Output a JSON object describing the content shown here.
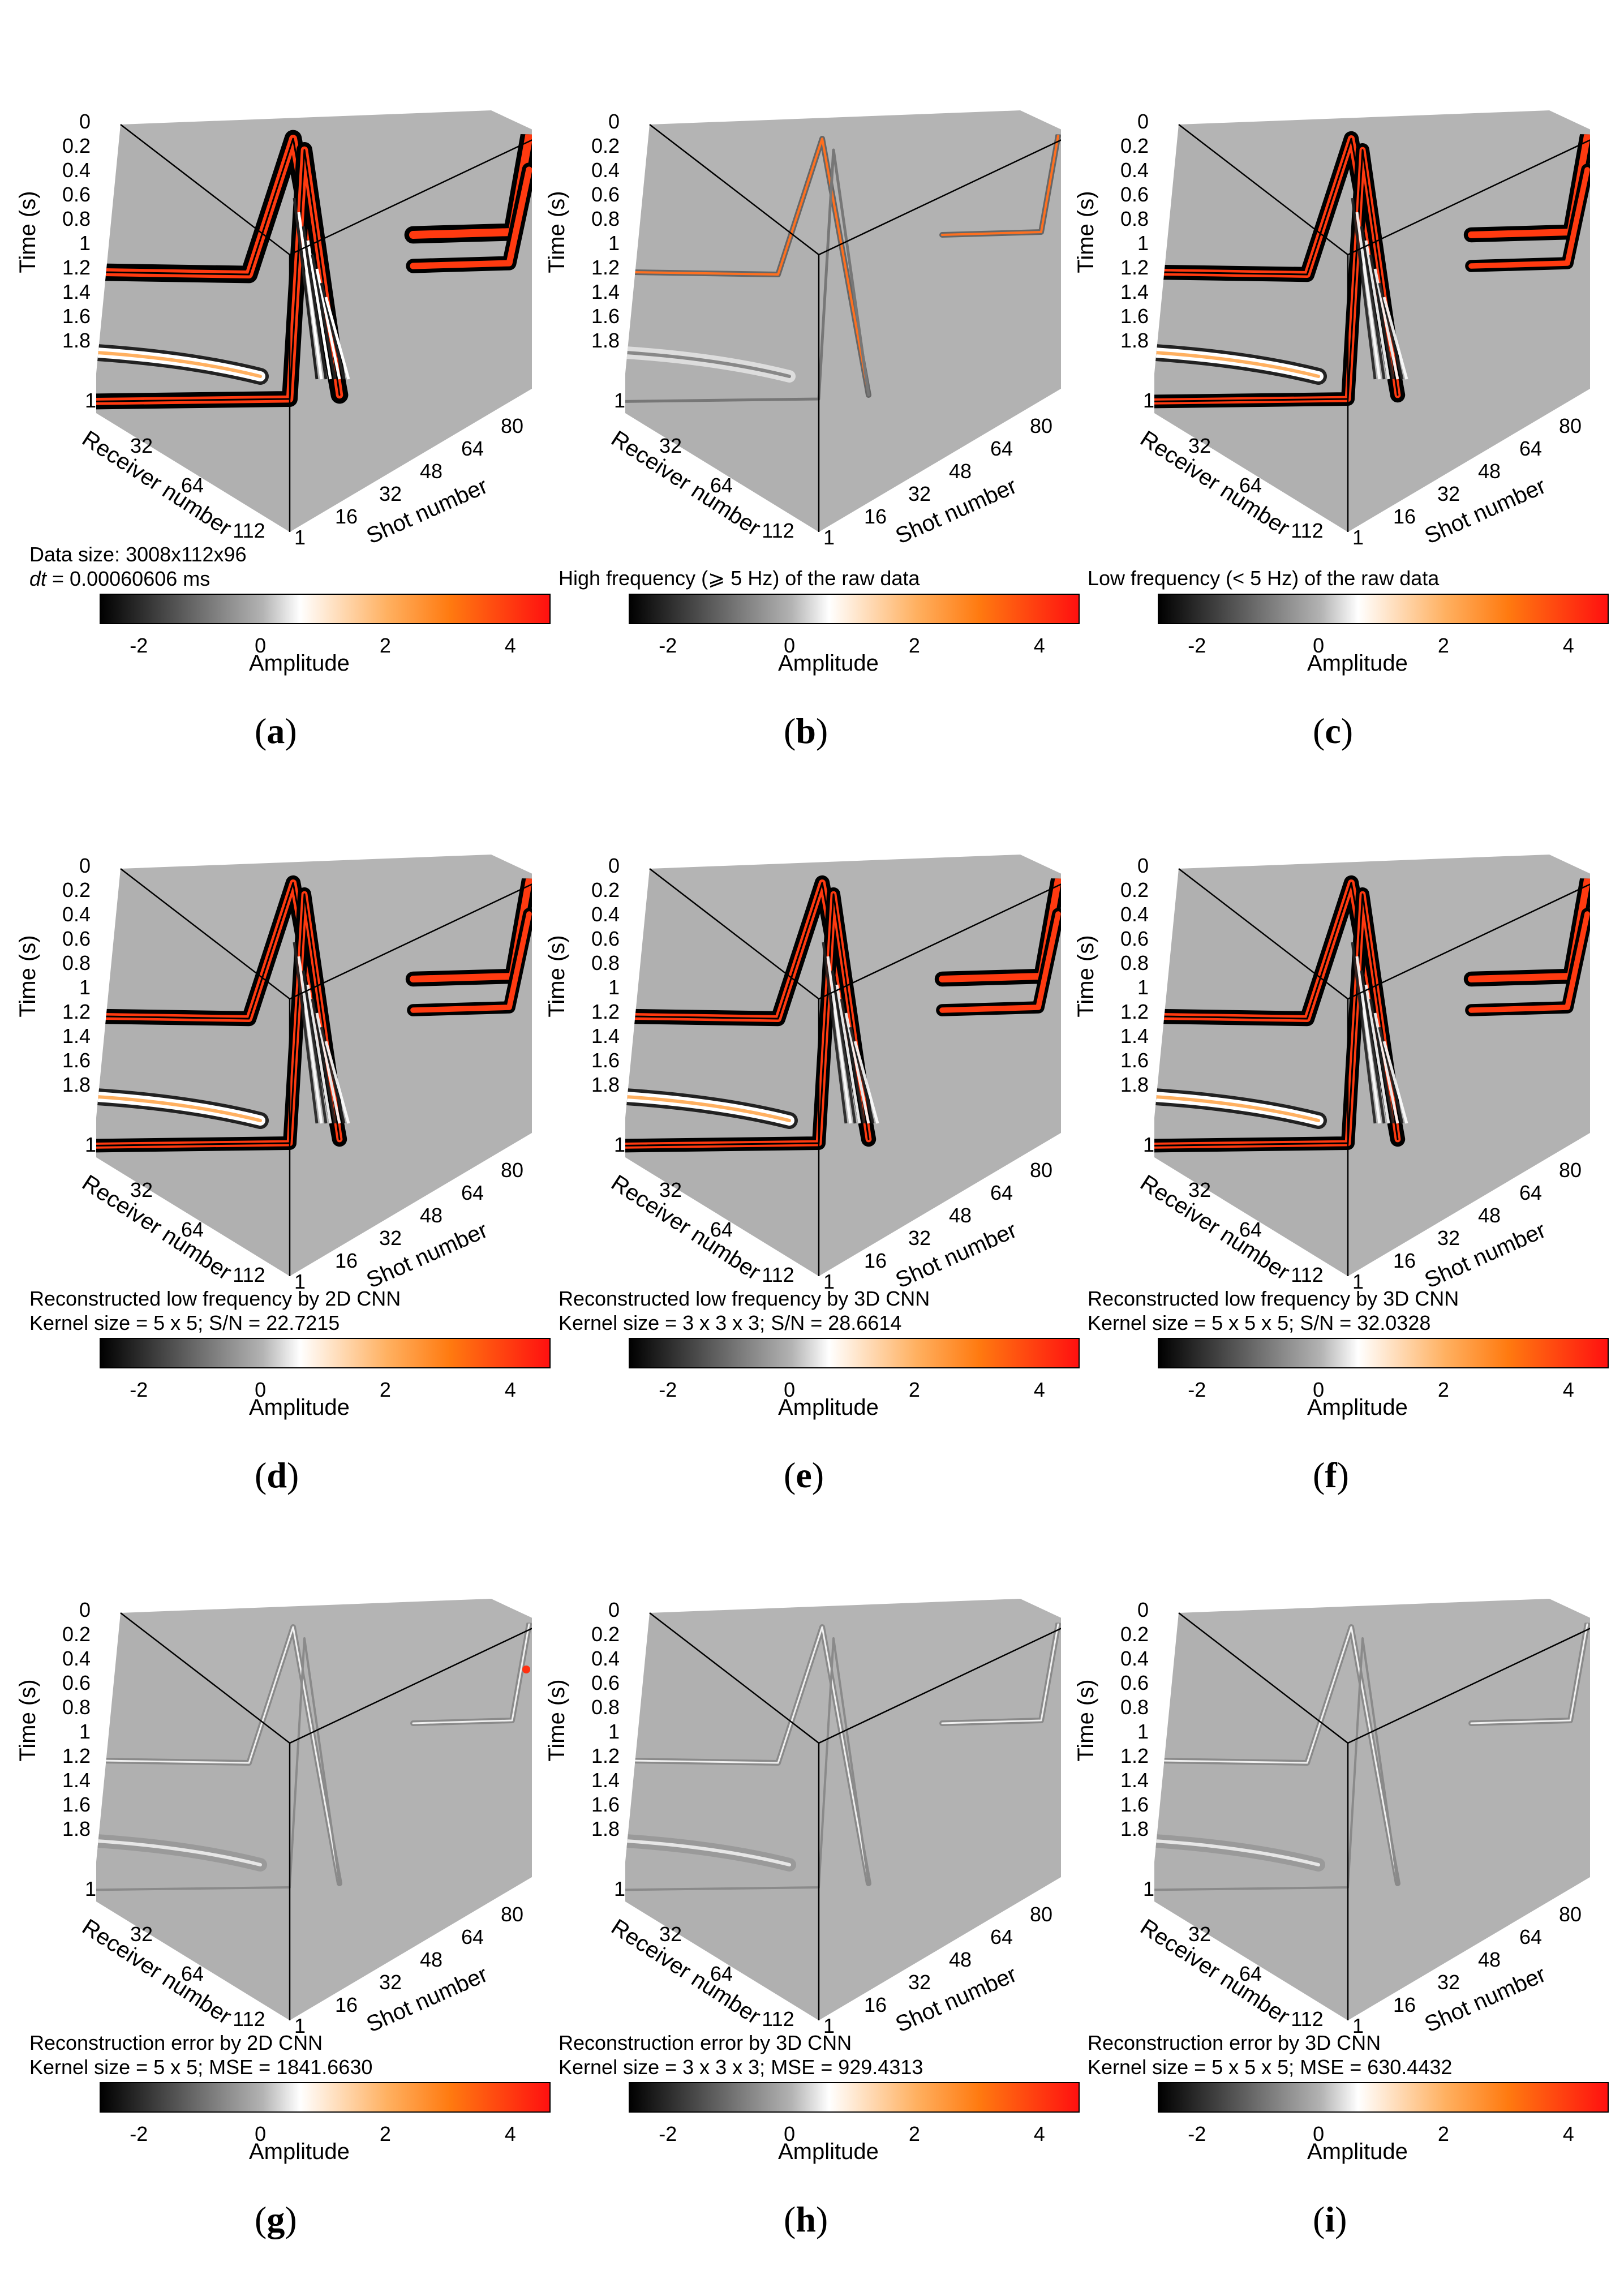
{
  "colormap": {
    "stops": [
      {
        "value": -2.6,
        "color": "#000000"
      },
      {
        "value": 0.0,
        "color": "#b3b3b3"
      },
      {
        "value": 0.6,
        "color": "#ffffff"
      },
      {
        "value": 2.0,
        "color": "#ffb060"
      },
      {
        "value": 3.0,
        "color": "#ff7a10"
      },
      {
        "value": 4.6,
        "color": "#ff1010"
      }
    ]
  },
  "axes": {
    "time_label": "Time (s)",
    "time_ticks": [
      "0",
      "0.2",
      "0.4",
      "0.6",
      "0.8",
      "1",
      "1.2",
      "1.4",
      "1.6",
      "1.8"
    ],
    "receiver_label": "Receiver number",
    "receiver_ticks": [
      "1",
      "32",
      "64",
      "112"
    ],
    "shot_label": "Shot number",
    "shot_ticks": [
      "1",
      "16",
      "32",
      "48",
      "64",
      "80"
    ],
    "colorbar_label": "Amplitude",
    "colorbar_ticks": [
      "-2",
      "0",
      "2",
      "4"
    ]
  },
  "chart_data": [
    {
      "type": "heatmap",
      "letter": "a",
      "kind": "full",
      "caption_line1": "Data size: 3008x112x96",
      "caption_line2_italic": "dt",
      "caption_line2_rest": " = 0.00060606 ms",
      "clim": [
        -2.6,
        4.6
      ]
    },
    {
      "type": "heatmap",
      "letter": "b",
      "kind": "high",
      "caption_line1": "High frequency (⩾ 5 Hz) of the raw data",
      "caption_line2_italic": "",
      "caption_line2_rest": "",
      "clim": [
        -2.6,
        4.6
      ]
    },
    {
      "type": "heatmap",
      "letter": "c",
      "kind": "low",
      "caption_line1": "Low frequency (< 5 Hz) of the raw data",
      "caption_line2_italic": "",
      "caption_line2_rest": "",
      "clim": [
        -2.6,
        4.6
      ]
    },
    {
      "type": "heatmap",
      "letter": "d",
      "kind": "low",
      "caption_line1": "Reconstructed low frequency by 2D CNN",
      "caption_line2_italic": "",
      "caption_line2_rest": "Kernel size = 5 x 5; S/N = 22.7215",
      "clim": [
        -2.6,
        4.6
      ]
    },
    {
      "type": "heatmap",
      "letter": "e",
      "kind": "low",
      "caption_line1": "Reconstructed low frequency by 3D CNN",
      "caption_line2_italic": "",
      "caption_line2_rest": "Kernel size = 3 x 3 x 3; S/N = 28.6614",
      "clim": [
        -2.6,
        4.6
      ]
    },
    {
      "type": "heatmap",
      "letter": "f",
      "kind": "low",
      "caption_line1": "Reconstructed low frequency by 3D CNN",
      "caption_line2_italic": "",
      "caption_line2_rest": "Kernel size = 5 x 5 x 5; S/N = 32.0328",
      "clim": [
        -2.6,
        4.6
      ]
    },
    {
      "type": "heatmap",
      "letter": "g",
      "kind": "error",
      "caption_line1": "Reconstruction error by 2D CNN",
      "caption_line2_italic": "",
      "caption_line2_rest": "Kernel size = 5 x 5; MSE = 1841.6630",
      "clim": [
        -2.6,
        4.6
      ]
    },
    {
      "type": "heatmap",
      "letter": "h",
      "kind": "error",
      "caption_line1": "Reconstruction error by 3D CNN",
      "caption_line2_italic": "",
      "caption_line2_rest": "Kernel size = 3 x 3 x 3; MSE = 929.4313",
      "clim": [
        -2.6,
        4.6
      ]
    },
    {
      "type": "heatmap",
      "letter": "i",
      "kind": "error",
      "caption_line1": "Reconstruction error by 3D CNN",
      "caption_line2_italic": "",
      "caption_line2_rest": "Kernel size = 5 x 5 x 5; MSE = 630.4432",
      "clim": [
        -2.6,
        4.6
      ]
    }
  ]
}
